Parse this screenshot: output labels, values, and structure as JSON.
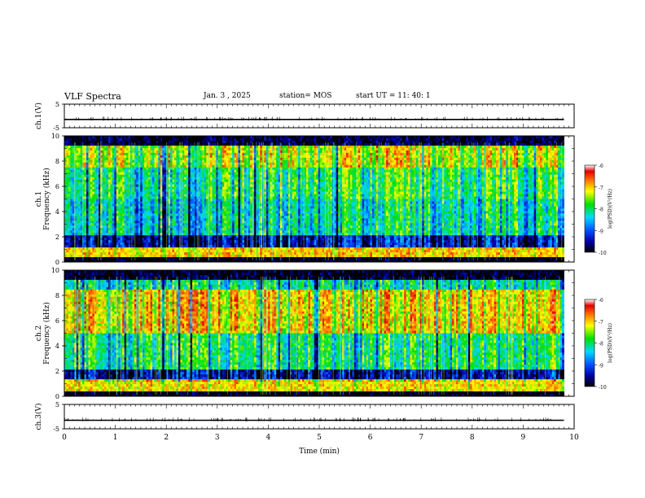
{
  "header": {
    "title": "VLF Spectra",
    "date": "Jan. 3 , 2025",
    "station": "station= MOS",
    "start": "start UT =  11: 40: 1"
  },
  "chart_data": [
    {
      "type": "line",
      "panel": "ch1-waveform",
      "ylabel": "ch.1(V)",
      "yticks": [
        "5",
        "-5"
      ],
      "ylim": [
        -5,
        5
      ],
      "xlim": [
        0,
        10
      ],
      "series": [
        {
          "x": [
            0,
            9.8
          ],
          "values": [
            -1.5,
            -1.5
          ]
        }
      ]
    },
    {
      "type": "heatmap",
      "panel": "ch1-spectrogram",
      "ylabel": "ch.1 Frequency (kHz)",
      "yticks": [
        "0",
        "2",
        "4",
        "6",
        "8",
        "10"
      ],
      "ylim": [
        0,
        10
      ],
      "xlim": [
        0,
        10
      ],
      "colorbar": {
        "label": "log(PSD)(V²/Hz)",
        "ticks": [
          "-6",
          "-7",
          "-8",
          "-9",
          "-10"
        ],
        "range": [
          -10,
          -6
        ]
      },
      "bands_khz": [
        {
          "from": 0,
          "to": 0.3,
          "level": -10.0
        },
        {
          "from": 0.3,
          "to": 1.2,
          "level": -7.0
        },
        {
          "from": 1.2,
          "to": 2.2,
          "level": -9.4
        },
        {
          "from": 2.2,
          "to": 5.0,
          "level": -8.2
        },
        {
          "from": 5.0,
          "to": 7.5,
          "level": -7.9
        },
        {
          "from": 7.5,
          "to": 9.2,
          "level": -7.3
        },
        {
          "from": 9.2,
          "to": 10.0,
          "level": -9.8
        }
      ]
    },
    {
      "type": "heatmap",
      "panel": "ch2-spectrogram",
      "ylabel": "ch.2 Frequency (kHz)",
      "yticks": [
        "0",
        "2",
        "4",
        "6",
        "8",
        "10"
      ],
      "ylim": [
        0,
        10
      ],
      "xlim": [
        0,
        10
      ],
      "colorbar": {
        "label": "log(PSD)(V²/Hz)",
        "ticks": [
          "-6",
          "-7",
          "-8",
          "-9",
          "-10"
        ],
        "range": [
          -10,
          -6
        ]
      },
      "bands_khz": [
        {
          "from": 0,
          "to": 0.3,
          "level": -10.0
        },
        {
          "from": 0.3,
          "to": 1.3,
          "level": -7.1
        },
        {
          "from": 1.3,
          "to": 2.1,
          "level": -9.5
        },
        {
          "from": 2.1,
          "to": 5.0,
          "level": -8.0
        },
        {
          "from": 5.0,
          "to": 8.5,
          "level": -7.1
        },
        {
          "from": 8.5,
          "to": 9.3,
          "level": -8.2
        },
        {
          "from": 9.3,
          "to": 10.0,
          "level": -9.9
        }
      ]
    },
    {
      "type": "line",
      "panel": "ch3-waveform",
      "ylabel": "ch.3(V)",
      "yticks": [
        "5",
        "-5"
      ],
      "ylim": [
        -5,
        5
      ],
      "xlim": [
        0,
        10
      ],
      "xlabel": "Time (min)",
      "xticks": [
        "0",
        "1",
        "2",
        "3",
        "4",
        "5",
        "6",
        "7",
        "8",
        "9",
        "10"
      ],
      "series": [
        {
          "x": [
            0,
            9.8
          ],
          "values": [
            -1.5,
            -1.5
          ]
        }
      ]
    }
  ]
}
